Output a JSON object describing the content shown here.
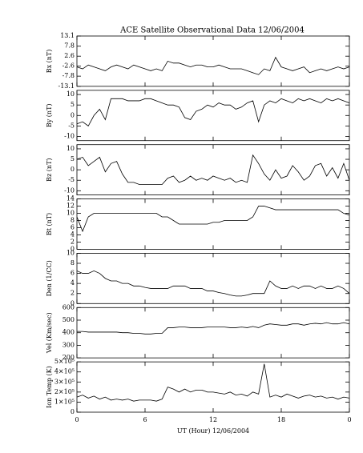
{
  "chart_data": [
    {
      "type": "line",
      "title": "ACE Satellite Observational Data   12/06/2004",
      "ylabel": "Bx (nT)",
      "x": [
        0,
        0.5,
        1,
        1.5,
        2,
        2.5,
        3,
        3.5,
        4,
        4.5,
        5,
        5.5,
        6,
        6.5,
        7,
        7.5,
        8,
        8.5,
        9,
        9.5,
        10,
        10.5,
        11,
        11.5,
        12,
        12.5,
        13,
        13.5,
        14,
        14.5,
        15,
        15.5,
        16,
        16.5,
        17,
        17.5,
        18,
        18.5,
        19,
        19.5,
        20,
        20.5,
        21,
        21.5,
        22,
        22.5,
        23,
        23.5,
        24
      ],
      "values": [
        -3,
        -4,
        -2,
        -3,
        -4,
        -5,
        -3,
        -2,
        -3,
        -4,
        -2,
        -3,
        -4,
        -5,
        -4,
        -5,
        0,
        -1,
        -1,
        -2,
        -3,
        -2,
        -2,
        -3,
        -3,
        -2,
        -3,
        -4,
        -4,
        -4,
        -5,
        -6,
        -7,
        -4,
        -5,
        2,
        -3,
        -4,
        -5,
        -4,
        -3,
        -6,
        -5,
        -4,
        -5,
        -4,
        -3,
        -4,
        -3
      ],
      "color": "#000000",
      "xlim": [
        0,
        24
      ],
      "ylim": [
        -13.1,
        13.1
      ],
      "yticks": [
        13.1,
        7.8,
        2.6,
        -2.6,
        -7.8,
        -13.1
      ]
    },
    {
      "type": "line",
      "ylabel": "By (nT)",
      "x": [
        0,
        0.5,
        1,
        1.5,
        2,
        2.5,
        3,
        3.5,
        4,
        4.5,
        5,
        5.5,
        6,
        6.5,
        7,
        7.5,
        8,
        8.5,
        9,
        9.5,
        10,
        10.5,
        11,
        11.5,
        12,
        12.5,
        13,
        13.5,
        14,
        14.5,
        15,
        15.5,
        16,
        16.5,
        17,
        17.5,
        18,
        18.5,
        19,
        19.5,
        20,
        20.5,
        21,
        21.5,
        22,
        22.5,
        23,
        23.5,
        24
      ],
      "values": [
        -4,
        -3,
        -5,
        0,
        3,
        -2,
        8,
        8,
        8,
        7,
        7,
        7,
        8,
        8,
        7,
        6,
        5,
        5,
        4,
        -1,
        -2,
        2,
        3,
        5,
        4,
        6,
        5,
        5,
        3,
        4,
        6,
        7,
        -3,
        5,
        7,
        6,
        8,
        7,
        6,
        8,
        7,
        8,
        7,
        6,
        8,
        7,
        8,
        7,
        6
      ],
      "color": "#000000",
      "xlim": [
        0,
        24
      ],
      "ylim": [
        -12,
        12
      ],
      "yticks": [
        10,
        5,
        0,
        -5,
        -10
      ]
    },
    {
      "type": "line",
      "ylabel": "Bz (nT)",
      "x": [
        0,
        0.5,
        1,
        1.5,
        2,
        2.5,
        3,
        3.5,
        4,
        4.5,
        5,
        5.5,
        6,
        6.5,
        7,
        7.5,
        8,
        8.5,
        9,
        9.5,
        10,
        10.5,
        11,
        11.5,
        12,
        12.5,
        13,
        13.5,
        14,
        14.5,
        15,
        15.5,
        16,
        16.5,
        17,
        17.5,
        18,
        18.5,
        19,
        19.5,
        20,
        20.5,
        21,
        21.5,
        22,
        22.5,
        23,
        23.5,
        24
      ],
      "values": [
        5,
        6,
        2,
        4,
        6,
        -1,
        3,
        4,
        -2,
        -6,
        -6,
        -7,
        -7,
        -7,
        -7,
        -7,
        -4,
        -3,
        -6,
        -5,
        -3,
        -5,
        -4,
        -5,
        -3,
        -4,
        -5,
        -4,
        -6,
        -5,
        -6,
        7,
        3,
        -2,
        -5,
        0,
        -4,
        -3,
        2,
        -1,
        -5,
        -3,
        2,
        3,
        -3,
        1,
        -4,
        3,
        -5
      ],
      "color": "#000000",
      "xlim": [
        0,
        24
      ],
      "ylim": [
        -12,
        12
      ],
      "yticks": [
        10,
        5,
        0,
        -5,
        -10
      ]
    },
    {
      "type": "line",
      "ylabel": "Bt (nT)",
      "x": [
        0,
        0.5,
        1,
        1.5,
        2,
        2.5,
        3,
        3.5,
        4,
        4.5,
        5,
        5.5,
        6,
        6.5,
        7,
        7.5,
        8,
        8.5,
        9,
        9.5,
        10,
        10.5,
        11,
        11.5,
        12,
        12.5,
        13,
        13.5,
        14,
        14.5,
        15,
        15.5,
        16,
        16.5,
        17,
        17.5,
        18,
        18.5,
        19,
        19.5,
        20,
        20.5,
        21,
        21.5,
        22,
        22.5,
        23,
        23.5,
        24
      ],
      "values": [
        9,
        5,
        9,
        10,
        10,
        10,
        10,
        10,
        10,
        10,
        10,
        10,
        10,
        10,
        10,
        9,
        9,
        8,
        7,
        7,
        7,
        7,
        7,
        7,
        7.5,
        7.5,
        8,
        8,
        8,
        8,
        8,
        9,
        12,
        12,
        11.5,
        11,
        11,
        11,
        11,
        11,
        11,
        11,
        11,
        11,
        11,
        11,
        11,
        10,
        9.5
      ],
      "color": "#000000",
      "xlim": [
        0,
        24
      ],
      "ylim": [
        0,
        14
      ],
      "yticks": [
        14,
        12,
        10,
        8,
        6,
        4,
        2,
        0
      ]
    },
    {
      "type": "line",
      "ylabel": "Den (1/CC)",
      "x": [
        0,
        0.5,
        1,
        1.5,
        2,
        2.5,
        3,
        3.5,
        4,
        4.5,
        5,
        5.5,
        6,
        6.5,
        7,
        7.5,
        8,
        8.5,
        9,
        9.5,
        10,
        10.5,
        11,
        11.5,
        12,
        12.5,
        13,
        13.5,
        14,
        14.5,
        15,
        15.5,
        16,
        16.5,
        17,
        17.5,
        18,
        18.5,
        19,
        19.5,
        20,
        20.5,
        21,
        21.5,
        22,
        22.5,
        23,
        23.5,
        24
      ],
      "values": [
        6.5,
        6,
        6,
        6.5,
        6,
        5,
        4.5,
        4.5,
        4,
        4,
        3.5,
        3.5,
        3.2,
        3,
        3,
        3,
        3,
        3.5,
        3.5,
        3.5,
        3,
        3,
        3,
        2.5,
        2.5,
        2.2,
        2,
        1.7,
        1.5,
        1.5,
        1.7,
        2,
        2,
        2,
        4.5,
        3.5,
        3,
        3,
        3.5,
        3,
        3.5,
        3.5,
        3,
        3.5,
        3,
        3,
        3.5,
        3,
        2
      ],
      "color": "#000000",
      "xlim": [
        0,
        24
      ],
      "ylim": [
        0,
        10
      ],
      "yticks": [
        10,
        8,
        6,
        4,
        2,
        0
      ]
    },
    {
      "type": "line",
      "ylabel": "Vel (Km/sec)",
      "x": [
        0,
        0.5,
        1,
        1.5,
        2,
        2.5,
        3,
        3.5,
        4,
        4.5,
        5,
        5.5,
        6,
        6.5,
        7,
        7.5,
        8,
        8.5,
        9,
        9.5,
        10,
        10.5,
        11,
        11.5,
        12,
        12.5,
        13,
        13.5,
        14,
        14.5,
        15,
        15.5,
        16,
        16.5,
        17,
        17.5,
        18,
        18.5,
        19,
        19.5,
        20,
        20.5,
        21,
        21.5,
        22,
        22.5,
        23,
        23.5,
        24
      ],
      "values": [
        410,
        410,
        405,
        405,
        405,
        405,
        405,
        405,
        400,
        400,
        395,
        395,
        390,
        390,
        395,
        395,
        440,
        440,
        445,
        445,
        440,
        440,
        440,
        445,
        445,
        445,
        445,
        440,
        440,
        445,
        440,
        450,
        440,
        460,
        470,
        465,
        460,
        460,
        470,
        470,
        460,
        470,
        475,
        470,
        480,
        470,
        470,
        480,
        470
      ],
      "color": "#000000",
      "xlim": [
        0,
        24
      ],
      "ylim": [
        200,
        600
      ],
      "yticks": [
        600,
        500,
        400,
        300,
        200
      ]
    },
    {
      "type": "line",
      "ylabel": "Ion Temp (K)",
      "xlabel": "UT (Hour)  12/06/2004",
      "x": [
        0,
        0.5,
        1,
        1.5,
        2,
        2.5,
        3,
        3.5,
        4,
        4.5,
        5,
        5.5,
        6,
        6.5,
        7,
        7.5,
        8,
        8.5,
        9,
        9.5,
        10,
        10.5,
        11,
        11.5,
        12,
        12.5,
        13,
        13.5,
        14,
        14.5,
        15,
        15.5,
        16,
        16.5,
        17,
        17.5,
        18,
        18.5,
        19,
        19.5,
        20,
        20.5,
        21,
        21.5,
        22,
        22.5,
        23,
        23.5,
        24
      ],
      "values": [
        150000,
        170000,
        140000,
        160000,
        130000,
        150000,
        120000,
        130000,
        120000,
        130000,
        110000,
        120000,
        120000,
        120000,
        110000,
        130000,
        250000,
        230000,
        200000,
        230000,
        200000,
        220000,
        220000,
        200000,
        200000,
        190000,
        180000,
        200000,
        170000,
        180000,
        160000,
        200000,
        180000,
        480000,
        150000,
        170000,
        150000,
        180000,
        160000,
        140000,
        160000,
        170000,
        150000,
        160000,
        140000,
        150000,
        130000,
        150000,
        140000
      ],
      "color": "#000000",
      "xlim": [
        0,
        24
      ],
      "ylim": [
        0,
        500000
      ],
      "yticks": [
        {
          "value": 500000,
          "label": "5×10⁵"
        },
        {
          "value": 400000,
          "label": "4×10⁵"
        },
        {
          "value": 300000,
          "label": "3×10⁵"
        },
        {
          "value": 200000,
          "label": "2×10⁵"
        },
        {
          "value": 100000,
          "label": "1×10⁵"
        },
        0
      ],
      "xticks": [
        0,
        6,
        12,
        18,
        {
          "value": 24,
          "label": "0"
        }
      ]
    }
  ]
}
